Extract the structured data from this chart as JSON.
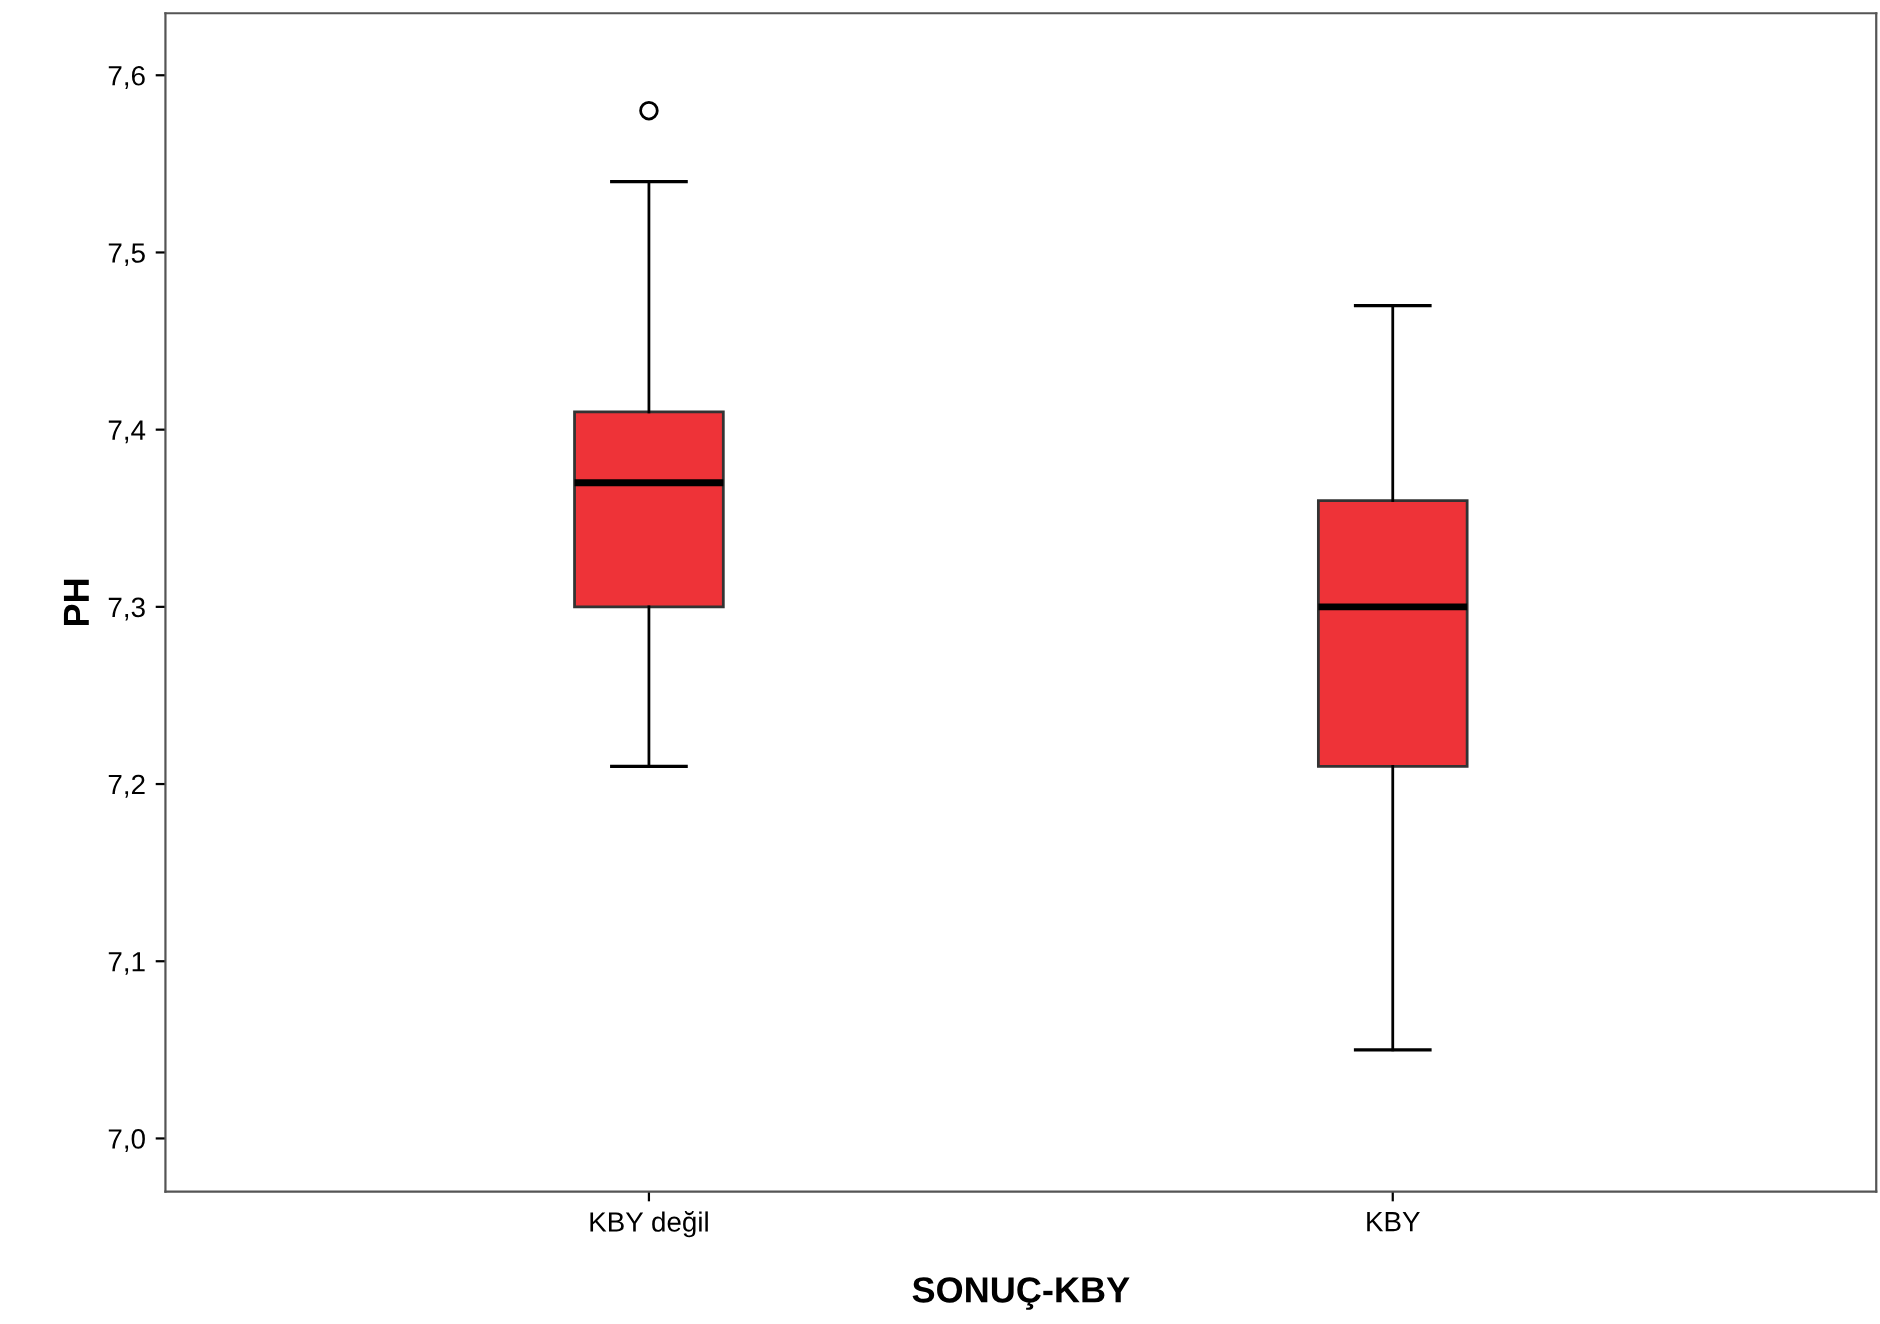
{
  "chart_data": {
    "type": "box",
    "xlabel": "SONUÇ-KBY",
    "ylabel": "PH",
    "categories": [
      "KBY değil",
      "KBY"
    ],
    "series": [
      {
        "color": "#ee3338",
        "boxes": [
          {
            "low": 7.21,
            "q1": 7.3,
            "median": 7.37,
            "q3": 7.41,
            "high": 7.54,
            "outliers": [
              7.58
            ]
          },
          {
            "low": 7.05,
            "q1": 7.21,
            "median": 7.3,
            "q3": 7.36,
            "high": 7.47
          }
        ]
      }
    ],
    "ylim": [
      6.97,
      7.635
    ],
    "yticks": [
      {
        "value": 7.0,
        "label": "7,0"
      },
      {
        "value": 7.1,
        "label": "7,1"
      },
      {
        "value": 7.2,
        "label": "7,2"
      },
      {
        "value": 7.3,
        "label": "7,3"
      },
      {
        "value": 7.4,
        "label": "7,4"
      },
      {
        "value": 7.5,
        "label": "7,5"
      },
      {
        "value": 7.6,
        "label": "7,6"
      }
    ],
    "grid": false,
    "legend": false
  }
}
